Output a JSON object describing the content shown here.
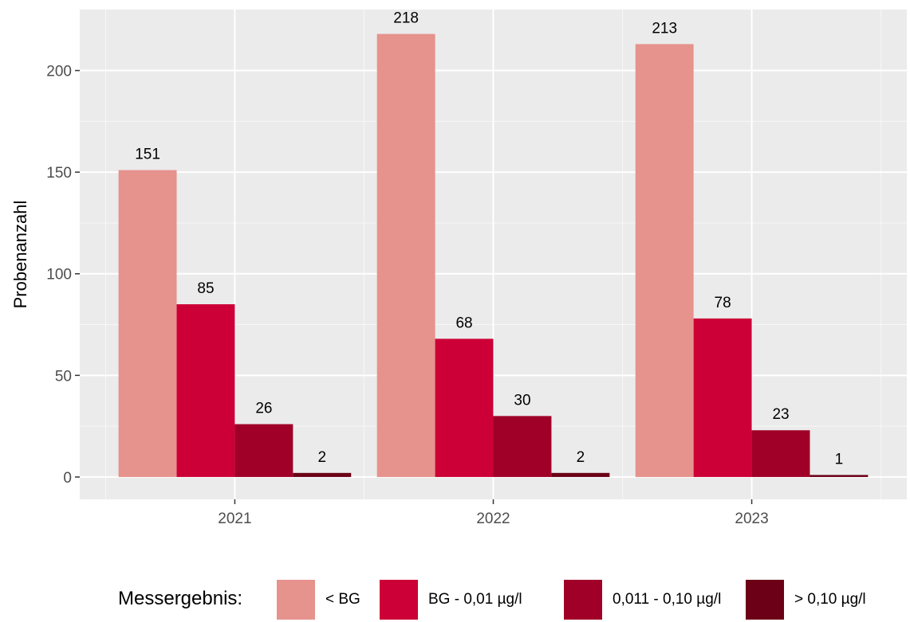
{
  "chart_data": {
    "type": "bar",
    "title": "",
    "xlabel": "",
    "ylabel": "Probenanzahl",
    "categories": [
      "2021",
      "2022",
      "2023"
    ],
    "ylim": [
      -11,
      230
    ],
    "yticks": [
      0,
      50,
      100,
      150,
      200
    ],
    "series": [
      {
        "name": "< BG",
        "color": "#e6928d",
        "values": [
          151,
          218,
          213
        ]
      },
      {
        "name": "BG - 0,01 µg/l",
        "color": "#cc0036",
        "values": [
          85,
          68,
          78
        ]
      },
      {
        "name": "0,011 - 0,10 µg/l",
        "color": "#a00028",
        "values": [
          26,
          30,
          23
        ]
      },
      {
        "name": "> 0,10 µg/l",
        "color": "#6b0016",
        "values": [
          2,
          2,
          1
        ]
      }
    ],
    "grid": true,
    "panel_background": "#ebebeb",
    "legend": {
      "title": "Messergebnis:",
      "position": "bottom"
    }
  }
}
